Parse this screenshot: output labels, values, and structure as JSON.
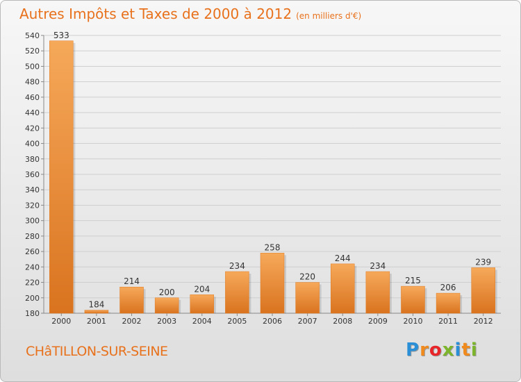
{
  "header": {
    "title": "Autres Impôts et Taxes de 2000 à 2012",
    "subtitle": "(en milliers d'€)"
  },
  "footer": {
    "city": "CHâTILLON-SUR-SEINE",
    "logo_letters": [
      "P",
      "r",
      "o",
      "x",
      "i",
      "t",
      "i"
    ],
    "logo_colors": [
      "#2a8fd6",
      "#f08a1c",
      "#e8262a",
      "#7cb52b",
      "#2a8fd6",
      "#f08a1c",
      "#7cb52b"
    ]
  },
  "chart_data": {
    "type": "bar",
    "categories": [
      "2000",
      "2001",
      "2002",
      "2003",
      "2004",
      "2005",
      "2006",
      "2007",
      "2008",
      "2009",
      "2010",
      "2011",
      "2012"
    ],
    "values": [
      533,
      184,
      214,
      200,
      204,
      234,
      258,
      220,
      244,
      234,
      215,
      206,
      239
    ],
    "data_labels": [
      "533",
      "184",
      "214",
      "200",
      "204",
      "234",
      "258",
      "220",
      "244",
      "234",
      "215",
      "206",
      "239"
    ],
    "ylim": [
      180,
      540
    ],
    "yticks": [
      180,
      200,
      220,
      240,
      260,
      280,
      300,
      320,
      340,
      360,
      380,
      400,
      420,
      440,
      460,
      480,
      500,
      520,
      540
    ],
    "grid": true,
    "bar_color_light": "#f6a95a",
    "bar_color_dark": "#d9731f",
    "title_color": "#e8711c"
  }
}
